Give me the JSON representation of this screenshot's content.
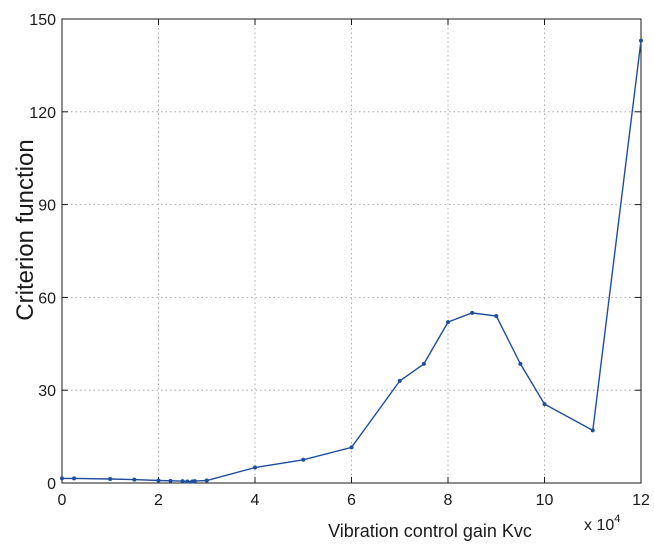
{
  "chart_data": {
    "type": "line",
    "title": "",
    "xlabel": "Vibration control gain  Kvc",
    "ylabel": "Criterion function",
    "x_multiplier_label": "x 10",
    "x_multiplier_exponent": "4",
    "xlim": [
      0,
      12
    ],
    "ylim": [
      0,
      150
    ],
    "x_ticks": [
      0,
      2,
      4,
      6,
      8,
      10,
      12
    ],
    "x_tick_labels": [
      "0",
      "2",
      "4",
      "6",
      "8",
      "10",
      "12"
    ],
    "y_ticks": [
      0,
      30,
      60,
      90,
      120,
      150
    ],
    "y_tick_labels": [
      "0",
      "30",
      "60",
      "90",
      "120",
      "150"
    ],
    "grid": true,
    "line_color": "#1f4e9c",
    "series": [
      {
        "x": [
          0,
          0.25,
          1,
          1.5,
          2,
          2.25,
          2.5,
          2.6,
          2.7,
          2.75,
          3,
          4,
          5,
          6,
          7,
          7.5,
          8,
          8.5,
          9,
          9.5,
          10,
          11,
          12
        ],
        "y": [
          1.5,
          1.5,
          1.3,
          1.1,
          0.8,
          0.7,
          0.6,
          0.5,
          0.5,
          0.6,
          0.8,
          5,
          7.5,
          11.5,
          33,
          38.5,
          52,
          55,
          54,
          38.5,
          25.5,
          17,
          143
        ]
      }
    ]
  }
}
